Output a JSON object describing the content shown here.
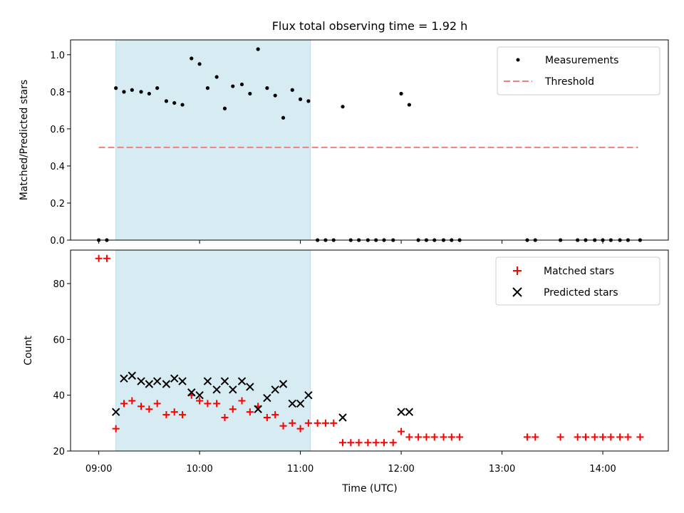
{
  "chart_data": [
    {
      "type": "scatter",
      "title": "Flux total observing time = 1.92 h",
      "xlabel": "",
      "ylabel": "Matched/Predicted stars",
      "xlim": [
        8.72,
        14.65
      ],
      "ylim": [
        0,
        1.08
      ],
      "x_ticks": [
        9,
        10,
        11,
        12,
        13,
        14
      ],
      "y_ticks": [
        0.0,
        0.2,
        0.4,
        0.6,
        0.8,
        1.0
      ],
      "y_tick_labels": [
        "0.0",
        "0.2",
        "0.4",
        "0.6",
        "0.8",
        "1.0"
      ],
      "highlight_span": [
        9.17,
        11.1
      ],
      "threshold": {
        "name": "Threshold",
        "value": 0.5,
        "x_start": 9.0,
        "x_end": 14.35,
        "color": "#f08080"
      },
      "legend": {
        "position": "top-right",
        "entries": [
          "Measurements",
          "Threshold"
        ]
      },
      "series": [
        {
          "name": "Measurements",
          "color": "#000000",
          "points": [
            [
              9.0,
              0.0
            ],
            [
              9.08,
              0.0
            ],
            [
              9.17,
              0.82
            ],
            [
              9.25,
              0.8
            ],
            [
              9.33,
              0.81
            ],
            [
              9.42,
              0.8
            ],
            [
              9.5,
              0.79
            ],
            [
              9.58,
              0.82
            ],
            [
              9.67,
              0.75
            ],
            [
              9.75,
              0.74
            ],
            [
              9.83,
              0.73
            ],
            [
              9.92,
              0.98
            ],
            [
              10.0,
              0.95
            ],
            [
              10.08,
              0.82
            ],
            [
              10.17,
              0.88
            ],
            [
              10.25,
              0.71
            ],
            [
              10.33,
              0.83
            ],
            [
              10.42,
              0.84
            ],
            [
              10.5,
              0.79
            ],
            [
              10.58,
              1.03
            ],
            [
              10.67,
              0.82
            ],
            [
              10.75,
              0.78
            ],
            [
              10.83,
              0.66
            ],
            [
              10.92,
              0.81
            ],
            [
              11.0,
              0.76
            ],
            [
              11.08,
              0.75
            ],
            [
              11.17,
              0.0
            ],
            [
              11.25,
              0.0
            ],
            [
              11.33,
              0.0
            ],
            [
              11.42,
              0.72
            ],
            [
              11.5,
              0.0
            ],
            [
              11.58,
              0.0
            ],
            [
              11.67,
              0.0
            ],
            [
              11.75,
              0.0
            ],
            [
              11.83,
              0.0
            ],
            [
              11.92,
              0.0
            ],
            [
              12.0,
              0.79
            ],
            [
              12.08,
              0.73
            ],
            [
              12.17,
              0.0
            ],
            [
              12.25,
              0.0
            ],
            [
              12.33,
              0.0
            ],
            [
              12.42,
              0.0
            ],
            [
              12.5,
              0.0
            ],
            [
              12.58,
              0.0
            ],
            [
              13.25,
              0.0
            ],
            [
              13.33,
              0.0
            ],
            [
              13.58,
              0.0
            ],
            [
              13.75,
              0.0
            ],
            [
              13.83,
              0.0
            ],
            [
              13.92,
              0.0
            ],
            [
              14.0,
              0.0
            ],
            [
              14.08,
              0.0
            ],
            [
              14.17,
              0.0
            ],
            [
              14.25,
              0.0
            ],
            [
              14.37,
              0.0
            ]
          ]
        }
      ]
    },
    {
      "type": "scatter",
      "title": "",
      "xlabel": "Time (UTC)",
      "ylabel": "Count",
      "xlim": [
        8.72,
        14.65
      ],
      "ylim": [
        20,
        92
      ],
      "x_ticks": [
        9,
        10,
        11,
        12,
        13,
        14
      ],
      "x_tick_labels": [
        "09:00",
        "10:00",
        "11:00",
        "12:00",
        "13:00",
        "14:00"
      ],
      "y_ticks": [
        20,
        40,
        60,
        80
      ],
      "y_tick_labels": [
        "20",
        "40",
        "60",
        "80"
      ],
      "highlight_span": [
        9.17,
        11.1
      ],
      "legend": {
        "position": "top-right",
        "entries": [
          "Matched stars",
          "Predicted stars"
        ]
      },
      "series": [
        {
          "name": "Matched stars",
          "marker": "plus",
          "color": "#ff0000",
          "points": [
            [
              9.0,
              89
            ],
            [
              9.08,
              89
            ],
            [
              9.17,
              28
            ],
            [
              9.25,
              37
            ],
            [
              9.33,
              38
            ],
            [
              9.42,
              36
            ],
            [
              9.5,
              35
            ],
            [
              9.58,
              37
            ],
            [
              9.67,
              33
            ],
            [
              9.75,
              34
            ],
            [
              9.83,
              33
            ],
            [
              9.92,
              40
            ],
            [
              10.0,
              38
            ],
            [
              10.08,
              37
            ],
            [
              10.17,
              37
            ],
            [
              10.25,
              32
            ],
            [
              10.33,
              35
            ],
            [
              10.42,
              38
            ],
            [
              10.5,
              34
            ],
            [
              10.58,
              36
            ],
            [
              10.67,
              32
            ],
            [
              10.75,
              33
            ],
            [
              10.83,
              29
            ],
            [
              10.92,
              30
            ],
            [
              11.0,
              28
            ],
            [
              11.08,
              30
            ],
            [
              11.17,
              30
            ],
            [
              11.25,
              30
            ],
            [
              11.33,
              30
            ],
            [
              11.42,
              23
            ],
            [
              11.5,
              23
            ],
            [
              11.58,
              23
            ],
            [
              11.67,
              23
            ],
            [
              11.75,
              23
            ],
            [
              11.83,
              23
            ],
            [
              11.92,
              23
            ],
            [
              12.0,
              27
            ],
            [
              12.08,
              25
            ],
            [
              12.17,
              25
            ],
            [
              12.25,
              25
            ],
            [
              12.33,
              25
            ],
            [
              12.42,
              25
            ],
            [
              12.5,
              25
            ],
            [
              12.58,
              25
            ],
            [
              13.25,
              25
            ],
            [
              13.33,
              25
            ],
            [
              13.58,
              25
            ],
            [
              13.75,
              25
            ],
            [
              13.83,
              25
            ],
            [
              13.92,
              25
            ],
            [
              14.0,
              25
            ],
            [
              14.08,
              25
            ],
            [
              14.17,
              25
            ],
            [
              14.25,
              25
            ],
            [
              14.37,
              25
            ]
          ]
        },
        {
          "name": "Predicted stars",
          "marker": "x",
          "color": "#000000",
          "points": [
            [
              9.17,
              34
            ],
            [
              9.25,
              46
            ],
            [
              9.33,
              47
            ],
            [
              9.42,
              45
            ],
            [
              9.5,
              44
            ],
            [
              9.58,
              45
            ],
            [
              9.67,
              44
            ],
            [
              9.75,
              46
            ],
            [
              9.83,
              45
            ],
            [
              9.92,
              41
            ],
            [
              10.0,
              40
            ],
            [
              10.08,
              45
            ],
            [
              10.17,
              42
            ],
            [
              10.25,
              45
            ],
            [
              10.33,
              42
            ],
            [
              10.42,
              45
            ],
            [
              10.5,
              43
            ],
            [
              10.58,
              35
            ],
            [
              10.67,
              39
            ],
            [
              10.75,
              42
            ],
            [
              10.83,
              44
            ],
            [
              10.92,
              37
            ],
            [
              11.0,
              37
            ],
            [
              11.08,
              40
            ],
            [
              11.42,
              32
            ],
            [
              12.0,
              34
            ],
            [
              12.08,
              34
            ]
          ]
        }
      ]
    }
  ]
}
